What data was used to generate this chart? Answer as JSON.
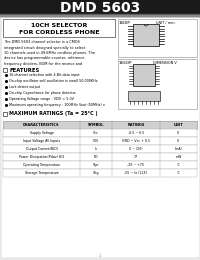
{
  "title": "DMD 5603",
  "subtitle1": "10CH SELECTOR",
  "subtitle2": "FOR CORDLESS PHONE",
  "header_bg": "#1a1a1a",
  "header_text_color": "#ffffff",
  "body_bg": "#e8e8e8",
  "white": "#ffffff",
  "light_gray": "#d0d0d0",
  "description": "The DMD 5603 channel selector is a CMOS integrated circuit designed specially to select 10 channels used in 49.6MHz cordless phones. The device has programmable counter, reference frequency dividers, BOM for the receive and receive lines and phase detector.",
  "features_title": "FEATURES",
  "features": [
    "10-channel selection with 4-Bit data input",
    "On-chip oscillator self-oscillation is small 50.000KHz",
    "Lock detect output",
    "On-chip Capacitance for phase detector",
    "Operating Voltage range : VDD = 5.0V",
    "Maximum operating frequency : 100MHz Vout (50MHz) x"
  ],
  "max_ratings_title": "MAXIMUM RATINGS (Ta = 25°C )",
  "table_headers": [
    "CHARACTERISTICS",
    "SYMBOL",
    "RATINGS",
    "UNIT"
  ],
  "table_rows": [
    [
      "Supply Voltage",
      "Vcc",
      "-0.5 ~ 6.5",
      "V"
    ],
    [
      "Input Voltage All Inputs",
      "VIN",
      "GND ~ Vcc + 0.5",
      "V"
    ],
    [
      "Output Current(BIO)",
      "Io",
      "0 ~ (20)",
      "(mA)"
    ],
    [
      "Power Dissipation(Pdav) 8/3",
      "PD",
      "77",
      "mW"
    ],
    [
      "Operating Temperature",
      "Topr",
      "-20 ~ +75",
      "°C"
    ],
    [
      "Storage Temperature",
      "Tstg",
      "-55 ~ to (125)",
      "°C"
    ]
  ],
  "package_label1": "16DIP",
  "package_label2": "16SOP",
  "package_note": "DIMENSION V",
  "page_num": "1"
}
